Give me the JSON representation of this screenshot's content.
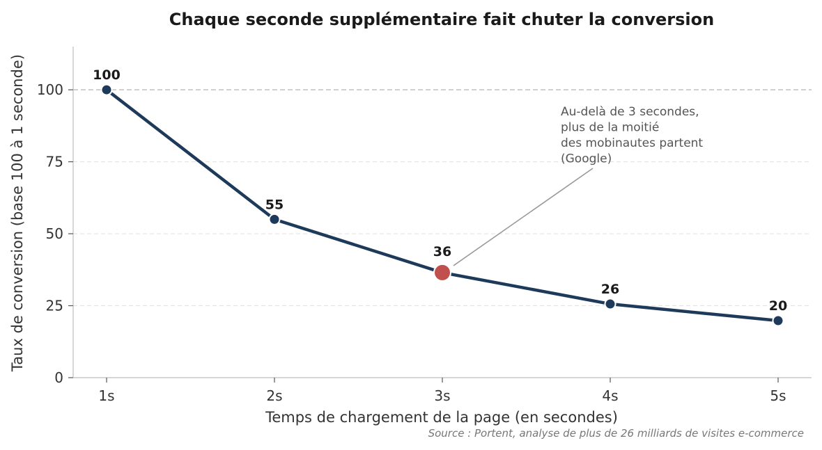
{
  "colors": {
    "line": "#1e3a5a",
    "highlight": "#c0504d",
    "grid": "#e3e3e3",
    "reference": "#bbbbbb",
    "axis": "#c8c8c8",
    "annotation_arrow": "#999999"
  },
  "chart_data": {
    "type": "line",
    "title": "Chaque seconde supplémentaire fait chuter la conversion",
    "xlabel": "Temps de chargement de la page (en secondes)",
    "ylabel": "Taux de conversion (base 100 à 1 seconde)",
    "categories": [
      "1s",
      "2s",
      "3s",
      "4s",
      "5s"
    ],
    "values": [
      100,
      55,
      36.5,
      25.6,
      19.8
    ],
    "data_labels": [
      "100",
      "55",
      "36",
      "26",
      "20"
    ],
    "highlight_index": 2,
    "ylim": [
      0,
      115
    ],
    "yticks": [
      0,
      25,
      50,
      75,
      100
    ],
    "grid": true,
    "reference_line": 100,
    "annotation": {
      "lines": [
        "Au-delà de 3 secondes,",
        "plus de la moitié",
        "des mobinautes partent",
        "(Google)"
      ]
    },
    "source": "Source : Portent, analyse de plus de 26 milliards de visites e-commerce"
  }
}
